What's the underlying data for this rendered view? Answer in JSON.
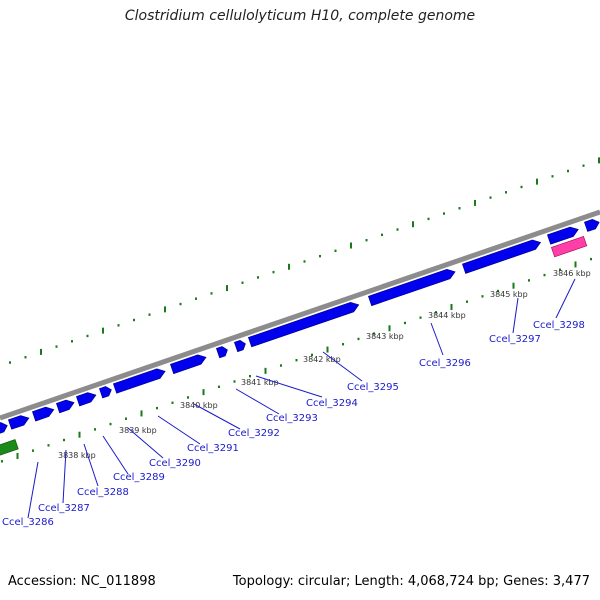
{
  "header": {
    "title": "Clostridium cellulolyticum H10, complete genome"
  },
  "footer": {
    "accession": "Accession: NC_011898",
    "stats": "Topology: circular; Length: 4,068,724 bp; Genes: 3,477"
  },
  "colors": {
    "backbone": "#8c8c8c",
    "gene_forward": "#0000ee",
    "gene_pink": "#ff3ea8",
    "gene_green": "#1a8a1a",
    "tick": "#1a7a1a",
    "label_line": "#1a1acc"
  },
  "scale_labels": [
    "3838 kbp",
    "3839 kbp",
    "3840 kbp",
    "3841 kbp",
    "3842 kbp",
    "3843 kbp",
    "3844 kbp",
    "3845 kbp",
    "3846 kbp"
  ],
  "genes": [
    "Ccel_3286",
    "Ccel_3287",
    "Ccel_3288",
    "Ccel_3289",
    "Ccel_3290",
    "Ccel_3291",
    "Ccel_3292",
    "Ccel_3293",
    "Ccel_3294",
    "Ccel_3295",
    "Ccel_3296",
    "Ccel_3297",
    "Ccel_3298"
  ]
}
